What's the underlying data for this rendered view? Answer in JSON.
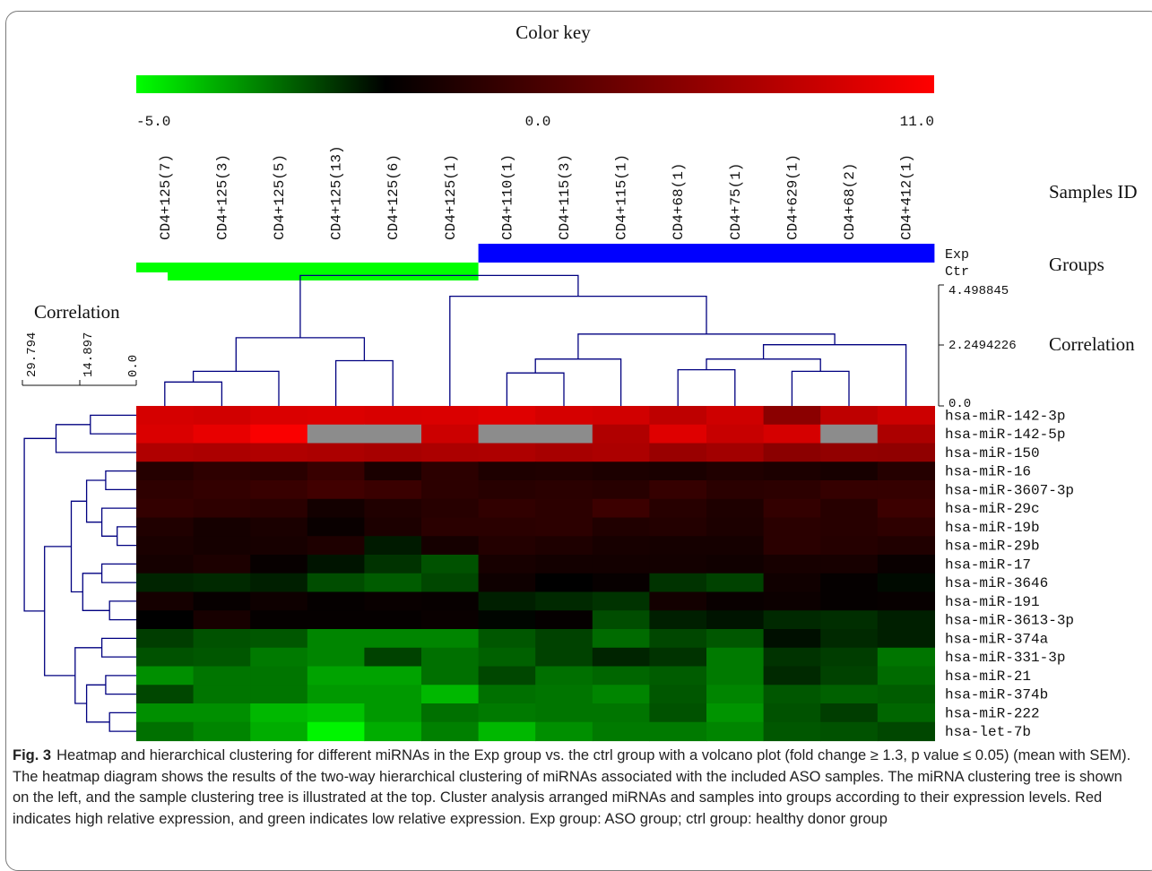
{
  "chart_data": {
    "type": "heatmap",
    "title": "Color key",
    "color_key": {
      "min": -5.0,
      "mid": 0.0,
      "max": 11.0,
      "min_label": "-5.0",
      "mid_label": "0.0",
      "max_label": "11.0",
      "low_color": "#00ff00",
      "mid_color": "#000000",
      "high_color": "#ff0000",
      "missing_color": "#8c8c8c"
    },
    "samples_label": "Samples ID",
    "groups_label": "Groups",
    "col_correlation_label": "Correlation",
    "row_correlation_label": "Correlation",
    "samples": [
      "CD4+125(7)",
      "CD4+125(3)",
      "CD4+125(5)",
      "CD4+125(13)",
      "CD4+125(6)",
      "CD4+125(1)",
      "CD4+110(1)",
      "CD4+115(3)",
      "CD4+115(1)",
      "CD4+68(1)",
      "CD4+75(1)",
      "CD4+629(1)",
      "CD4+68(2)",
      "CD4+412(1)"
    ],
    "groups": {
      "labels": [
        "Exp",
        "Ctr"
      ],
      "colors": {
        "Exp": "#0000ff",
        "Ctr": "#00ff00"
      },
      "assignment": [
        "Ctr",
        "Ctr",
        "Ctr",
        "Ctr",
        "Ctr",
        "Ctr",
        "Exp",
        "Exp",
        "Exp",
        "Exp",
        "Exp",
        "Exp",
        "Exp",
        "Exp"
      ]
    },
    "col_axis": {
      "ticks": [
        "4.498845",
        "2.2494226",
        "0.0"
      ],
      "max": 4.498845
    },
    "row_axis": {
      "ticks": [
        "29.794",
        "14.897",
        "0.0"
      ],
      "max": 29.794
    },
    "genes": [
      "hsa-miR-142-3p",
      "hsa-miR-142-5p",
      "hsa-miR-150",
      "hsa-miR-16",
      "hsa-miR-3607-3p",
      "hsa-miR-29c",
      "hsa-miR-19b",
      "hsa-miR-29b",
      "hsa-miR-17",
      "hsa-miR-3646",
      "hsa-miR-191",
      "hsa-miR-3613-3p",
      "hsa-miR-374a",
      "hsa-miR-331-3p",
      "hsa-miR-21",
      "hsa-miR-374b",
      "hsa-miR-222",
      "hsa-let-7b"
    ],
    "values": [
      [
        9.2,
        9.0,
        9.4,
        9.5,
        9.3,
        9.4,
        9.6,
        9.2,
        9.0,
        8.2,
        8.9,
        6.0,
        8.2,
        8.8
      ],
      [
        9.4,
        10.0,
        10.8,
        null,
        null,
        8.8,
        null,
        null,
        7.6,
        9.6,
        8.6,
        9.2,
        null,
        7.4
      ],
      [
        7.6,
        7.4,
        7.6,
        7.4,
        7.2,
        7.4,
        7.5,
        7.2,
        7.4,
        6.6,
        7.0,
        6.0,
        6.3,
        6.2
      ],
      [
        1.6,
        2.0,
        1.8,
        2.4,
        1.1,
        1.9,
        1.3,
        1.4,
        1.2,
        1.1,
        1.4,
        1.2,
        1.0,
        1.6
      ],
      [
        2.0,
        2.2,
        2.4,
        2.8,
        2.5,
        1.9,
        1.7,
        1.8,
        1.7,
        2.3,
        1.8,
        1.9,
        2.3,
        2.3
      ],
      [
        2.2,
        2.0,
        1.8,
        0.8,
        1.4,
        1.7,
        2.1,
        1.9,
        2.6,
        1.7,
        1.3,
        2.2,
        1.7,
        2.6
      ],
      [
        1.4,
        0.9,
        1.1,
        0.4,
        1.2,
        1.8,
        1.8,
        1.9,
        1.4,
        1.5,
        1.2,
        1.8,
        1.7,
        2.0
      ],
      [
        1.1,
        0.9,
        1.0,
        1.3,
        -0.5,
        0.9,
        1.5,
        1.3,
        1.0,
        0.9,
        0.9,
        1.8,
        1.6,
        1.4
      ],
      [
        0.9,
        1.2,
        0.3,
        -0.4,
        -1.0,
        -1.6,
        1.0,
        0.8,
        0.8,
        0.8,
        0.7,
        1.0,
        1.0,
        0.4
      ],
      [
        -0.7,
        -0.8,
        -0.6,
        -1.5,
        -1.8,
        -1.4,
        0.6,
        0.0,
        0.3,
        -1.0,
        -1.3,
        0.7,
        0.2,
        -0.2
      ],
      [
        0.9,
        0.3,
        0.6,
        0.2,
        0.4,
        0.3,
        -0.6,
        -0.8,
        -1.0,
        0.8,
        0.4,
        0.5,
        0.2,
        0.3
      ],
      [
        0.0,
        1.0,
        0.2,
        0.2,
        0.2,
        0.4,
        -0.1,
        0.2,
        -1.5,
        -0.6,
        -0.4,
        -0.8,
        -0.9,
        -0.6
      ],
      [
        -1.2,
        -1.6,
        -1.7,
        -2.6,
        -2.6,
        -2.6,
        -1.7,
        -1.3,
        -2.1,
        -1.4,
        -1.7,
        -0.3,
        -0.8,
        -0.6
      ],
      [
        -1.6,
        -1.7,
        -2.4,
        -2.6,
        -1.3,
        -2.2,
        -1.9,
        -1.3,
        -0.7,
        -1.0,
        -2.4,
        -1.0,
        -1.2,
        -2.3
      ],
      [
        -2.8,
        -2.3,
        -2.3,
        -3.2,
        -3.2,
        -2.2,
        -1.4,
        -2.2,
        -2.0,
        -1.8,
        -2.4,
        -0.8,
        -1.3,
        -2.1
      ],
      [
        -1.4,
        -2.3,
        -2.3,
        -3.0,
        -3.0,
        -3.6,
        -2.2,
        -2.3,
        -2.6,
        -1.7,
        -2.6,
        -1.7,
        -1.9,
        -1.8
      ],
      [
        -2.8,
        -2.8,
        -3.6,
        -3.8,
        -3.0,
        -2.2,
        -2.4,
        -2.3,
        -2.3,
        -1.6,
        -2.9,
        -1.6,
        -1.2,
        -2.0
      ],
      [
        -2.2,
        -2.6,
        -3.4,
        -4.8,
        -3.4,
        -2.5,
        -3.6,
        -2.8,
        -2.4,
        -2.4,
        -2.6,
        -1.7,
        -1.6,
        -1.4
      ]
    ],
    "grid": false
  },
  "caption": {
    "label": "Fig. 3",
    "text": "Heatmap and hierarchical clustering for different miRNAs in the Exp group vs. the ctrl group with a volcano plot (fold change ≥ 1.3, p value ≤ 0.05) (mean with SEM). The heatmap diagram shows the results of the two-way hierarchical clustering of miRNAs associated with the included ASO samples. The miRNA clustering tree is shown on the left, and the sample clustering tree is illustrated at the top. Cluster analysis arranged miRNAs and samples into groups according to their expression levels. Red indicates high relative expression, and green indicates low relative expression. Exp group: ASO group; ctrl group: healthy donor group"
  }
}
